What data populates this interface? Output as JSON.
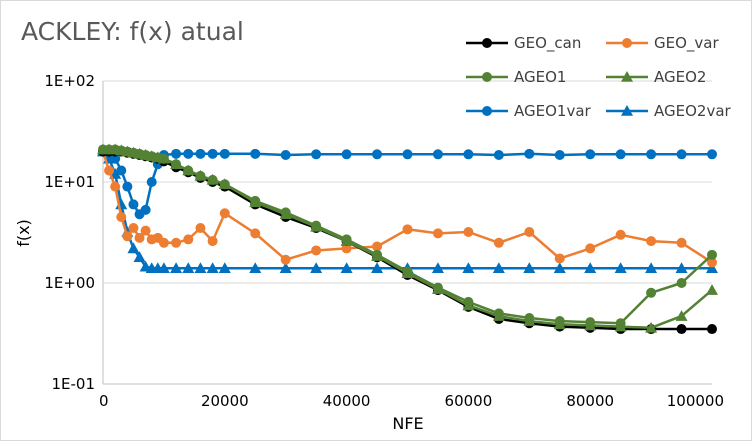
{
  "chart_data": {
    "type": "line",
    "title": "ACKLEY: f(x) atual",
    "xlabel": "NFE",
    "ylabel": "f(x)",
    "xlim": [
      0,
      100000
    ],
    "ylim": [
      0.1,
      100
    ],
    "y_scale": "log",
    "x_ticks": [
      0,
      20000,
      40000,
      60000,
      80000,
      100000
    ],
    "x_tick_labels": [
      "0",
      "20000",
      "40000",
      "60000",
      "80000",
      "100000"
    ],
    "y_ticks": [
      0.1,
      1,
      10,
      100
    ],
    "y_tick_labels": [
      "1E-01",
      "1E+00",
      "1E+01",
      "1E+02"
    ],
    "grid": "horizontal",
    "legend_position": "top-right",
    "series": [
      {
        "name": "GEO_can",
        "color": "#000000",
        "marker": "circle",
        "points": [
          [
            0,
            20
          ],
          [
            1000,
            20
          ],
          [
            2000,
            20
          ],
          [
            3000,
            20
          ],
          [
            4000,
            19.5
          ],
          [
            5000,
            19
          ],
          [
            6000,
            18.5
          ],
          [
            7000,
            18
          ],
          [
            8000,
            17.5
          ],
          [
            9000,
            17
          ],
          [
            10000,
            16
          ],
          [
            12000,
            14
          ],
          [
            14000,
            12.5
          ],
          [
            16000,
            11
          ],
          [
            18000,
            10
          ],
          [
            20000,
            9
          ],
          [
            25000,
            6
          ],
          [
            30000,
            4.5
          ],
          [
            35000,
            3.5
          ],
          [
            40000,
            2.6
          ],
          [
            45000,
            1.8
          ],
          [
            50000,
            1.2
          ],
          [
            55000,
            0.85
          ],
          [
            60000,
            0.58
          ],
          [
            65000,
            0.44
          ],
          [
            70000,
            0.4
          ],
          [
            75000,
            0.37
          ],
          [
            80000,
            0.36
          ],
          [
            85000,
            0.35
          ],
          [
            90000,
            0.35
          ],
          [
            95000,
            0.35
          ],
          [
            100000,
            0.35
          ]
        ]
      },
      {
        "name": "GEO_var",
        "color": "#ED7D31",
        "marker": "circle",
        "points": [
          [
            0,
            20
          ],
          [
            1000,
            13
          ],
          [
            2000,
            9
          ],
          [
            3000,
            4.5
          ],
          [
            4000,
            2.9
          ],
          [
            5000,
            3.5
          ],
          [
            6000,
            2.8
          ],
          [
            7000,
            3.3
          ],
          [
            8000,
            2.7
          ],
          [
            9000,
            2.8
          ],
          [
            10000,
            2.5
          ],
          [
            12000,
            2.5
          ],
          [
            14000,
            2.7
          ],
          [
            16000,
            3.5
          ],
          [
            18000,
            2.6
          ],
          [
            20000,
            4.9
          ],
          [
            25000,
            3.1
          ],
          [
            30000,
            1.7
          ],
          [
            35000,
            2.1
          ],
          [
            40000,
            2.2
          ],
          [
            45000,
            2.3
          ],
          [
            50000,
            3.4
          ],
          [
            55000,
            3.1
          ],
          [
            60000,
            3.2
          ],
          [
            65000,
            2.5
          ],
          [
            70000,
            3.2
          ],
          [
            75000,
            1.75
          ],
          [
            80000,
            2.2
          ],
          [
            85000,
            3
          ],
          [
            90000,
            2.6
          ],
          [
            95000,
            2.5
          ],
          [
            100000,
            1.6
          ]
        ]
      },
      {
        "name": "AGEO1",
        "color": "#548235",
        "marker": "circle",
        "points": [
          [
            0,
            21
          ],
          [
            1000,
            21
          ],
          [
            2000,
            21
          ],
          [
            3000,
            20.5
          ],
          [
            4000,
            20
          ],
          [
            5000,
            19.5
          ],
          [
            6000,
            19
          ],
          [
            7000,
            18.5
          ],
          [
            8000,
            18
          ],
          [
            9000,
            17.5
          ],
          [
            10000,
            17
          ],
          [
            12000,
            15
          ],
          [
            14000,
            13
          ],
          [
            16000,
            11.5
          ],
          [
            18000,
            10.5
          ],
          [
            20000,
            9.5
          ],
          [
            25000,
            6.5
          ],
          [
            30000,
            5
          ],
          [
            35000,
            3.7
          ],
          [
            40000,
            2.7
          ],
          [
            45000,
            1.9
          ],
          [
            50000,
            1.3
          ],
          [
            55000,
            0.9
          ],
          [
            60000,
            0.65
          ],
          [
            65000,
            0.5
          ],
          [
            70000,
            0.45
          ],
          [
            75000,
            0.42
          ],
          [
            80000,
            0.41
          ],
          [
            85000,
            0.4
          ],
          [
            90000,
            0.8
          ],
          [
            95000,
            1
          ],
          [
            100000,
            1.9
          ]
        ]
      },
      {
        "name": "AGEO2",
        "color": "#548235",
        "marker": "triangle",
        "points": [
          [
            0,
            21
          ],
          [
            1000,
            21
          ],
          [
            2000,
            21
          ],
          [
            3000,
            20.5
          ],
          [
            4000,
            20
          ],
          [
            5000,
            19.5
          ],
          [
            6000,
            19
          ],
          [
            7000,
            18.5
          ],
          [
            8000,
            18
          ],
          [
            9000,
            17.5
          ],
          [
            10000,
            17
          ],
          [
            12000,
            15
          ],
          [
            14000,
            13
          ],
          [
            16000,
            11.5
          ],
          [
            18000,
            10.5
          ],
          [
            20000,
            9.5
          ],
          [
            25000,
            6.3
          ],
          [
            30000,
            4.8
          ],
          [
            35000,
            3.6
          ],
          [
            40000,
            2.6
          ],
          [
            45000,
            1.85
          ],
          [
            50000,
            1.25
          ],
          [
            55000,
            0.87
          ],
          [
            60000,
            0.6
          ],
          [
            65000,
            0.47
          ],
          [
            70000,
            0.42
          ],
          [
            75000,
            0.39
          ],
          [
            80000,
            0.38
          ],
          [
            85000,
            0.37
          ],
          [
            90000,
            0.36
          ],
          [
            95000,
            0.47
          ],
          [
            100000,
            0.85
          ]
        ]
      },
      {
        "name": "AGEO1var",
        "color": "#0070C0",
        "marker": "circle",
        "points": [
          [
            0,
            20
          ],
          [
            1000,
            19
          ],
          [
            2000,
            17
          ],
          [
            3000,
            13
          ],
          [
            4000,
            9
          ],
          [
            5000,
            6
          ],
          [
            6000,
            4.8
          ],
          [
            7000,
            5.3
          ],
          [
            8000,
            10
          ],
          [
            9000,
            15
          ],
          [
            10000,
            18.5
          ],
          [
            12000,
            19
          ],
          [
            14000,
            19
          ],
          [
            16000,
            19
          ],
          [
            18000,
            19
          ],
          [
            20000,
            19
          ],
          [
            25000,
            19
          ],
          [
            30000,
            18.5
          ],
          [
            35000,
            18.8
          ],
          [
            40000,
            18.8
          ],
          [
            45000,
            18.8
          ],
          [
            50000,
            18.8
          ],
          [
            55000,
            18.8
          ],
          [
            60000,
            18.8
          ],
          [
            65000,
            18.5
          ],
          [
            70000,
            19
          ],
          [
            75000,
            18.5
          ],
          [
            80000,
            18.8
          ],
          [
            85000,
            18.8
          ],
          [
            90000,
            18.8
          ],
          [
            95000,
            18.8
          ],
          [
            100000,
            18.8
          ]
        ]
      },
      {
        "name": "AGEO2var",
        "color": "#0070C0",
        "marker": "triangle",
        "points": [
          [
            0,
            20
          ],
          [
            1000,
            17
          ],
          [
            2000,
            12
          ],
          [
            3000,
            6
          ],
          [
            4000,
            3.2
          ],
          [
            5000,
            2.2
          ],
          [
            6000,
            1.8
          ],
          [
            7000,
            1.45
          ],
          [
            8000,
            1.4
          ],
          [
            9000,
            1.4
          ],
          [
            10000,
            1.4
          ],
          [
            12000,
            1.4
          ],
          [
            14000,
            1.4
          ],
          [
            16000,
            1.4
          ],
          [
            18000,
            1.4
          ],
          [
            20000,
            1.4
          ],
          [
            25000,
            1.4
          ],
          [
            30000,
            1.4
          ],
          [
            35000,
            1.4
          ],
          [
            40000,
            1.4
          ],
          [
            45000,
            1.4
          ],
          [
            50000,
            1.4
          ],
          [
            55000,
            1.4
          ],
          [
            60000,
            1.4
          ],
          [
            65000,
            1.4
          ],
          [
            70000,
            1.4
          ],
          [
            75000,
            1.4
          ],
          [
            80000,
            1.4
          ],
          [
            85000,
            1.4
          ],
          [
            90000,
            1.4
          ],
          [
            95000,
            1.4
          ],
          [
            100000,
            1.4
          ]
        ]
      }
    ]
  }
}
